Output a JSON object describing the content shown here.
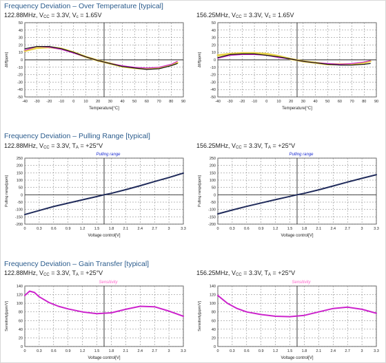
{
  "sections": [
    {
      "title": "Frequency Deviation – Over Temperature [typical]"
    },
    {
      "title": "Frequency Deviation – Pulling Range [typical]"
    },
    {
      "title": "Frequency Deviation – Gain Transfer [typical]"
    }
  ],
  "colors": {
    "black": "#111111",
    "yellow": "#e8d24a",
    "magenta": "#cc22cc",
    "navy": "#1f2a5a",
    "pink": "#ff66cc",
    "blue_label": "#1a2bd0",
    "title": "#2a5b8c"
  },
  "chart_data": [
    {
      "type": "line",
      "subtitle": {
        "freq": "122.88MHz",
        "vcc_label": "V",
        "vcc_sub": "CC",
        "vcc_value": " = 3.3V, ",
        "v2_label": "V",
        "v2_sub": "c",
        "v2_value": " = 1.65V"
      },
      "title": "",
      "xlabel": "Temperature[°C]",
      "ylabel": "Δf/f[ppm]",
      "xlim": [
        -40,
        90
      ],
      "ylim": [
        -50,
        50
      ],
      "xticks": [
        -40,
        -30,
        -20,
        -10,
        0,
        10,
        20,
        30,
        40,
        50,
        60,
        70,
        80,
        90
      ],
      "yticks": [
        -50,
        -40,
        -30,
        -20,
        -10,
        0,
        10,
        20,
        30,
        40,
        50
      ],
      "vline": 25,
      "grid": true,
      "series": [
        {
          "color": "#e8d24a",
          "width": 3,
          "x": [
            -40,
            -30,
            -20,
            -10,
            0,
            10,
            20,
            30,
            40,
            50,
            60,
            70,
            80,
            85
          ],
          "y": [
            12,
            16,
            17,
            15,
            10,
            4,
            -1,
            -5,
            -9,
            -11,
            -12,
            -11,
            -7,
            -4
          ]
        },
        {
          "color": "#cc22cc",
          "width": 1.2,
          "x": [
            -40,
            -30,
            -20,
            -10,
            0,
            10,
            20,
            30,
            40,
            50,
            60,
            70,
            80,
            85
          ],
          "y": [
            13,
            18,
            17,
            14,
            9,
            4,
            -1,
            -5,
            -8,
            -10,
            -11,
            -10,
            -6,
            -2
          ]
        },
        {
          "color": "#111111",
          "width": 1.2,
          "x": [
            -40,
            -30,
            -20,
            -10,
            0,
            10,
            20,
            30,
            40,
            50,
            60,
            70,
            80,
            85
          ],
          "y": [
            15,
            18,
            18,
            15,
            10,
            4,
            -1,
            -5,
            -9,
            -11,
            -13,
            -12,
            -8,
            -5
          ]
        }
      ]
    },
    {
      "type": "line",
      "subtitle": {
        "freq": "156.25MHz",
        "vcc_label": "V",
        "vcc_sub": "CC",
        "vcc_value": " = 3.3V, ",
        "v2_label": "V",
        "v2_sub": "c",
        "v2_value": " = 1.65V"
      },
      "title": "",
      "xlabel": "Temperature[°C]",
      "ylabel": "Δf/f[ppm]",
      "xlim": [
        -40,
        90
      ],
      "ylim": [
        -50,
        50
      ],
      "xticks": [
        -40,
        -30,
        -20,
        -10,
        0,
        10,
        20,
        30,
        40,
        50,
        60,
        70,
        80,
        90
      ],
      "yticks": [
        -50,
        -40,
        -30,
        -20,
        -10,
        0,
        10,
        20,
        30,
        40,
        50
      ],
      "vline": 25,
      "grid": true,
      "series": [
        {
          "color": "#e8d24a",
          "width": 3,
          "x": [
            -40,
            -30,
            -20,
            -10,
            0,
            10,
            20,
            30,
            40,
            50,
            60,
            70,
            80,
            85
          ],
          "y": [
            6,
            8,
            9,
            9,
            8,
            5,
            1,
            -2,
            -4,
            -6,
            -6,
            -6,
            -4,
            -2
          ]
        },
        {
          "color": "#cc22cc",
          "width": 1.2,
          "x": [
            -40,
            -30,
            -20,
            -10,
            0,
            10,
            20,
            30,
            40,
            50,
            60,
            70,
            80,
            85
          ],
          "y": [
            2,
            6,
            7,
            7,
            6,
            3,
            1,
            -2,
            -4,
            -5,
            -6,
            -5,
            -3,
            -1
          ]
        },
        {
          "color": "#111111",
          "width": 1.2,
          "x": [
            -40,
            -30,
            -20,
            -10,
            0,
            10,
            20,
            30,
            40,
            50,
            60,
            70,
            80,
            85
          ],
          "y": [
            3,
            7,
            8,
            8,
            6,
            4,
            1,
            -2,
            -4,
            -6,
            -7,
            -7,
            -6,
            -5
          ]
        }
      ]
    },
    {
      "type": "line",
      "subtitle": {
        "freq": "122.88MHz",
        "vcc_label": "V",
        "vcc_sub": "CC",
        "vcc_value": " = 3.3V, ",
        "v2_label": "T",
        "v2_sub": "A",
        "v2_value": " = +25°V"
      },
      "title": "Pulling range",
      "title_color": "#1a2bd0",
      "xlabel": "Voltage control[V]",
      "ylabel": "Pulling range[ppm]",
      "xlim": [
        0,
        3.3
      ],
      "ylim": [
        -200,
        250
      ],
      "xticks": [
        0,
        0.3,
        0.6,
        0.9,
        1.2,
        1.5,
        1.8,
        2.1,
        2.4,
        2.7,
        3,
        3.3
      ],
      "yticks": [
        -200,
        -150,
        -100,
        -50,
        0,
        50,
        100,
        150,
        200,
        250
      ],
      "vline": 1.65,
      "grid": true,
      "series": [
        {
          "color": "#1f2a5a",
          "width": 2,
          "x": [
            0,
            0.3,
            0.6,
            0.9,
            1.2,
            1.5,
            1.65,
            1.8,
            2.1,
            2.4,
            2.7,
            3,
            3.3
          ],
          "y": [
            -135,
            -107,
            -80,
            -57,
            -34,
            -12,
            0,
            10,
            35,
            62,
            90,
            118,
            148
          ]
        }
      ]
    },
    {
      "type": "line",
      "subtitle": {
        "freq": "156.25MHz",
        "vcc_label": "V",
        "vcc_sub": "CC",
        "vcc_value": " = 3.3V, ",
        "v2_label": "T",
        "v2_sub": "A",
        "v2_value": " = +25°V"
      },
      "title": "Pulling range",
      "title_color": "#1a2bd0",
      "xlabel": "Voltage control[V]",
      "ylabel": "Pulling range[ppm]",
      "xlim": [
        0,
        3.3
      ],
      "ylim": [
        -200,
        250
      ],
      "xticks": [
        0,
        0.3,
        0.6,
        0.9,
        1.2,
        1.5,
        1.8,
        2.1,
        2.4,
        2.7,
        3,
        3.3
      ],
      "yticks": [
        -200,
        -150,
        -100,
        -50,
        0,
        50,
        100,
        150,
        200,
        250
      ],
      "vline": 1.65,
      "grid": true,
      "series": [
        {
          "color": "#1f2a5a",
          "width": 2,
          "x": [
            0,
            0.3,
            0.6,
            0.9,
            1.2,
            1.5,
            1.65,
            1.8,
            2.1,
            2.4,
            2.7,
            3,
            3.3
          ],
          "y": [
            -130,
            -104,
            -79,
            -56,
            -33,
            -11,
            0,
            10,
            34,
            60,
            87,
            112,
            137
          ]
        }
      ]
    },
    {
      "type": "line",
      "subtitle": {
        "freq": "122.88MHz",
        "vcc_label": "V",
        "vcc_sub": "CC",
        "vcc_value": " = 3.3V, ",
        "v2_label": "T",
        "v2_sub": "A",
        "v2_value": " = +25°V"
      },
      "title": "Sensitivity",
      "title_color": "#ff66cc",
      "xlabel": "Voltage control[V]",
      "ylabel": "Sensitivity[ppm/V]",
      "xlim": [
        0,
        3.3
      ],
      "ylim": [
        0,
        140
      ],
      "xticks": [
        0,
        0.3,
        0.6,
        0.9,
        1.2,
        1.5,
        1.8,
        2.1,
        2.4,
        2.7,
        3,
        3.3
      ],
      "yticks": [
        0,
        20,
        40,
        60,
        80,
        100,
        120,
        140
      ],
      "vline": 1.65,
      "grid": true,
      "series": [
        {
          "color": "#cc22cc",
          "width": 2,
          "x": [
            0,
            0.1,
            0.2,
            0.3,
            0.5,
            0.7,
            0.9,
            1.2,
            1.5,
            1.8,
            2.1,
            2.4,
            2.7,
            3,
            3.3
          ],
          "y": [
            118,
            128,
            125,
            115,
            102,
            93,
            87,
            80,
            76,
            78,
            86,
            93,
            92,
            82,
            70
          ]
        }
      ]
    },
    {
      "type": "line",
      "subtitle": {
        "freq": "156.25MHz",
        "vcc_label": "V",
        "vcc_sub": "CC",
        "vcc_value": " = 3.3V, ",
        "v2_label": "T",
        "v2_sub": "A",
        "v2_value": " = +25°V"
      },
      "title": "Sensitivity",
      "title_color": "#ff66cc",
      "xlabel": "Voltage control[V]",
      "ylabel": "Sensitivity[ppm/V]",
      "xlim": [
        0,
        3.3
      ],
      "ylim": [
        0,
        140
      ],
      "xticks": [
        0,
        0.3,
        0.6,
        0.9,
        1.2,
        1.5,
        1.8,
        2.1,
        2.4,
        2.7,
        3,
        3.3
      ],
      "yticks": [
        0,
        20,
        40,
        60,
        80,
        100,
        120,
        140
      ],
      "vline": 1.65,
      "grid": true,
      "series": [
        {
          "color": "#cc22cc",
          "width": 2,
          "x": [
            0,
            0.2,
            0.4,
            0.6,
            0.9,
            1.2,
            1.5,
            1.8,
            2.1,
            2.4,
            2.7,
            3,
            3.3
          ],
          "y": [
            118,
            100,
            88,
            80,
            74,
            70,
            69,
            72,
            80,
            88,
            91,
            86,
            77
          ]
        }
      ]
    }
  ]
}
